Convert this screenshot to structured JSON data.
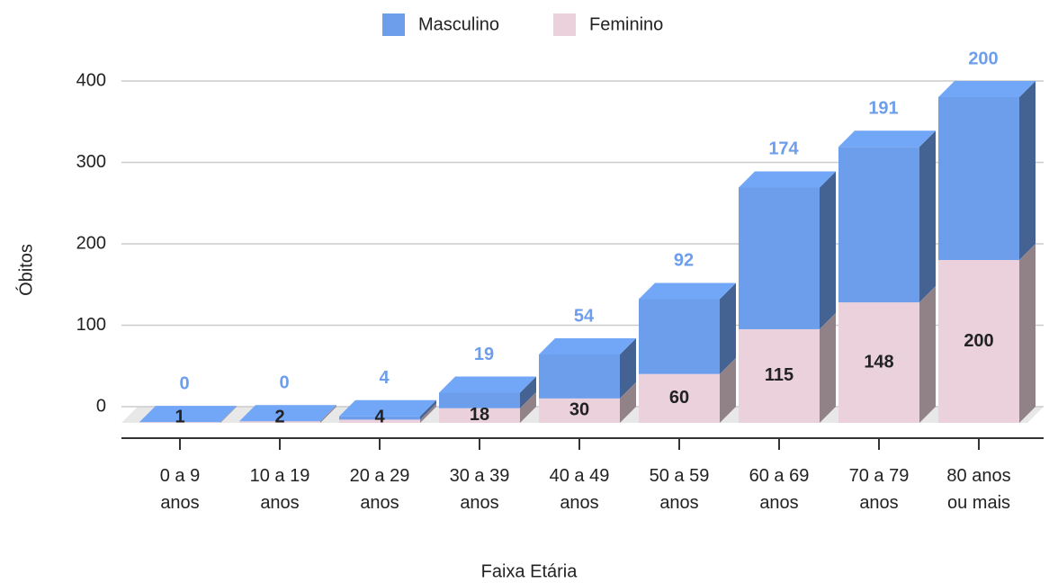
{
  "chart_data": {
    "type": "bar3d_stacked",
    "x_label": "Faixa Etária",
    "y_label": "Óbitos",
    "categories": [
      "0 a 9\nanos",
      "10 a 19\nanos",
      "20 a 29\nanos",
      "30 a 39\nanos",
      "40 a 49\nanos",
      "50 a 59\nanos",
      "60 a 69\nanos",
      "70 a 79\nanos",
      "80 anos\nou mais"
    ],
    "series": [
      {
        "name": "Feminino",
        "color": "#ead1dc",
        "values": [
          1,
          2,
          4,
          18,
          30,
          60,
          115,
          148,
          200
        ]
      },
      {
        "name": "Masculino",
        "color": "#6d9eeb",
        "values": [
          0,
          0,
          4,
          19,
          54,
          92,
          174,
          191,
          200
        ]
      }
    ],
    "legend_order": [
      "Masculino",
      "Feminino"
    ],
    "ylim": [
      0,
      400
    ],
    "yticks": [
      0,
      100,
      200,
      300,
      400
    ],
    "grid": true
  }
}
